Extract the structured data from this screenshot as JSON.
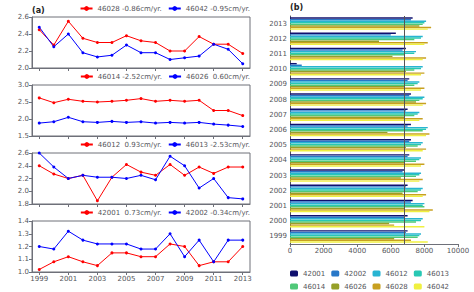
{
  "chart_data": [
    {
      "type": "line",
      "x": [
        1999,
        2000,
        2001,
        2002,
        2003,
        2004,
        2005,
        2006,
        2007,
        2008,
        2009,
        2010,
        2011,
        2012,
        2013
      ],
      "xlim": [
        1998.5,
        2013.5
      ],
      "xticks": [
        1999,
        2001,
        2003,
        2005,
        2007,
        2009,
        2011,
        2013
      ],
      "ylim": [
        2.0,
        2.6
      ],
      "yticks": [
        {
          "value": 2.0,
          "label": "2.0"
        },
        2.2,
        2.4,
        2.6
      ],
      "series": [
        {
          "name": "46028 -0.86cm/yr.",
          "color": "red",
          "marker": "o",
          "line_style": "solid",
          "values": [
            2.45,
            2.27,
            2.55,
            2.35,
            2.3,
            2.3,
            2.38,
            2.32,
            2.3,
            2.2,
            2.2,
            2.37,
            2.28,
            2.28,
            2.17
          ]
        },
        {
          "name": "46042 -0.95cm/yr.",
          "color": "blue",
          "marker": "o",
          "line_style": "solid",
          "values": [
            2.48,
            2.25,
            2.4,
            2.18,
            2.13,
            2.15,
            2.27,
            2.18,
            2.18,
            2.1,
            2.12,
            2.14,
            2.28,
            2.22,
            2.05
          ]
        }
      ],
      "legend": "upper right",
      "grid": false,
      "tick_labels": "y",
      "annotations": [
        "(a)"
      ]
    },
    {
      "type": "line",
      "x": [
        1999,
        2000,
        2001,
        2002,
        2003,
        2004,
        2005,
        2006,
        2007,
        2008,
        2009,
        2010,
        2011,
        2012,
        2013
      ],
      "xlim": [
        1998.5,
        2013.5
      ],
      "xticks": [
        1999,
        2001,
        2003,
        2005,
        2007,
        2009,
        2011,
        2013
      ],
      "ylim": [
        1.5,
        3.0
      ],
      "yticks": [
        1.5,
        {
          "value": 2.0,
          "label": "2.0"
        },
        2.5,
        {
          "value": 3.0,
          "label": "3.0"
        }
      ],
      "series": [
        {
          "name": "46014 -2.52cm/yr.",
          "color": "red",
          "marker": "o",
          "line_style": "solid",
          "values": [
            2.62,
            2.48,
            2.58,
            2.52,
            2.5,
            2.52,
            2.55,
            2.6,
            2.52,
            2.55,
            2.52,
            2.55,
            2.25,
            2.25,
            2.1
          ]
        },
        {
          "name": "46026  0.60cm/yr.",
          "color": "blue",
          "marker": "o",
          "line_style": "solid",
          "values": [
            1.88,
            1.92,
            2.05,
            1.92,
            1.9,
            1.93,
            1.9,
            1.92,
            1.88,
            1.9,
            1.88,
            1.9,
            1.85,
            1.82,
            1.78
          ]
        }
      ],
      "legend": "upper right",
      "grid": false,
      "tick_labels": "y"
    },
    {
      "type": "line",
      "x": [
        1999,
        2000,
        2001,
        2002,
        2003,
        2004,
        2005,
        2006,
        2007,
        2008,
        2009,
        2010,
        2011,
        2012,
        2013
      ],
      "xlim": [
        1998.5,
        2013.5
      ],
      "xticks": [
        1999,
        2001,
        2003,
        2005,
        2007,
        2009,
        2011,
        2013
      ],
      "ylim": [
        1.8,
        2.6
      ],
      "yticks": [
        1.8,
        {
          "value": 2.0,
          "label": "2.0"
        },
        2.2,
        2.4,
        2.6
      ],
      "series": [
        {
          "name": "46012  0.93cm/yr.",
          "color": "red",
          "marker": "o",
          "line_style": "solid",
          "values": [
            2.4,
            2.27,
            2.2,
            2.25,
            1.85,
            2.22,
            2.42,
            2.3,
            2.25,
            2.42,
            2.25,
            2.38,
            2.28,
            2.38,
            2.38
          ]
        },
        {
          "name": "46013 -2.53cm/yr.",
          "color": "blue",
          "marker": "o",
          "line_style": "solid",
          "values": [
            2.6,
            2.38,
            2.2,
            2.25,
            2.22,
            2.22,
            2.2,
            2.25,
            2.18,
            2.55,
            2.4,
            2.05,
            2.2,
            1.9,
            1.88
          ]
        }
      ],
      "legend": "upper right",
      "grid": false,
      "tick_labels": "y"
    },
    {
      "type": "line",
      "x": [
        1999,
        2000,
        2001,
        2002,
        2003,
        2004,
        2005,
        2006,
        2007,
        2008,
        2009,
        2010,
        2011,
        2012,
        2013
      ],
      "xlim": [
        1998.5,
        2013.5
      ],
      "xticks": [
        1999,
        2001,
        2003,
        2005,
        2007,
        2009,
        2011,
        2013
      ],
      "ylim": [
        1.0,
        1.4
      ],
      "yticks": [
        {
          "value": 1.0,
          "label": "1.0"
        },
        1.1,
        1.2,
        1.3,
        1.4
      ],
      "series": [
        {
          "name": "42001  0.73cm/yr.",
          "color": "red",
          "marker": "o",
          "line_style": "solid",
          "values": [
            1.02,
            1.08,
            1.12,
            1.08,
            1.05,
            1.15,
            1.15,
            1.12,
            1.12,
            1.22,
            1.2,
            1.05,
            1.08,
            1.08,
            1.2
          ]
        },
        {
          "name": "42002 -0.34cm/yr.",
          "color": "blue",
          "marker": "o",
          "line_style": "solid",
          "values": [
            1.2,
            1.18,
            1.32,
            1.25,
            1.22,
            1.22,
            1.22,
            1.18,
            1.18,
            1.3,
            1.12,
            1.25,
            1.08,
            1.25,
            1.25
          ]
        }
      ],
      "legend": "upper right",
      "grid": false
    },
    {
      "type": "bar",
      "orientation": "horizontal",
      "categories": [
        "1999",
        "2000",
        "2001",
        "2002",
        "2003",
        "2004",
        "2005",
        "2006",
        "2007",
        "2008",
        "2009",
        "2010",
        "2011",
        "2012",
        "2013"
      ],
      "xlim": [
        0,
        10000
      ],
      "xticks": [
        0,
        2000,
        4000,
        6000,
        8000,
        10000
      ],
      "series": [
        {
          "name": "42001",
          "color": "#10106e",
          "values": [
            7000,
            7000,
            7300,
            7000,
            6800,
            7100,
            7200,
            7200,
            7000,
            7200,
            7100,
            400,
            6900,
            6300,
            7300
          ]
        },
        {
          "name": "42002",
          "color": "#2878c8",
          "values": [
            6900,
            6800,
            7200,
            6900,
            6700,
            7000,
            7100,
            7000,
            6900,
            7100,
            7000,
            700,
            6700,
            6000,
            7200
          ]
        },
        {
          "name": "46012",
          "color": "#28b4d2",
          "values": [
            7800,
            7900,
            8000,
            7900,
            7800,
            7800,
            7900,
            8200,
            7700,
            8000,
            7700,
            7900,
            7500,
            7900,
            8100
          ]
        },
        {
          "name": "46013",
          "color": "#28c8b4",
          "values": [
            7700,
            7800,
            7900,
            7800,
            7700,
            7700,
            7800,
            8100,
            7600,
            7900,
            7600,
            7800,
            7400,
            7800,
            8000
          ]
        },
        {
          "name": "46014",
          "color": "#50c878",
          "values": [
            7600,
            7500,
            8000,
            7600,
            7500,
            7500,
            7600,
            7900,
            7400,
            7700,
            7400,
            7400,
            6800,
            7400,
            7900
          ]
        },
        {
          "name": "46026",
          "color": "#96a028",
          "values": [
            6200,
            5900,
            6800,
            6700,
            6600,
            6800,
            6900,
            5800,
            6800,
            7500,
            6800,
            6900,
            6100,
            5300,
            7700
          ]
        },
        {
          "name": "46028",
          "color": "#c8a020",
          "values": [
            7200,
            6200,
            8500,
            8100,
            7900,
            8000,
            8100,
            8300,
            7900,
            8100,
            8000,
            8000,
            8100,
            8200,
            8400
          ]
        },
        {
          "name": "46042",
          "color": "#f0f040",
          "values": [
            8200,
            8000,
            8300,
            7900,
            7700,
            7800,
            7900,
            8100,
            7700,
            7900,
            7800,
            7800,
            7900,
            8000,
            8200
          ]
        }
      ],
      "reference_lines": [
        {
          "x": 6800,
          "color": "#555555"
        }
      ],
      "legend": "lower left",
      "grid": false,
      "annotations": [
        "(b)"
      ]
    }
  ]
}
